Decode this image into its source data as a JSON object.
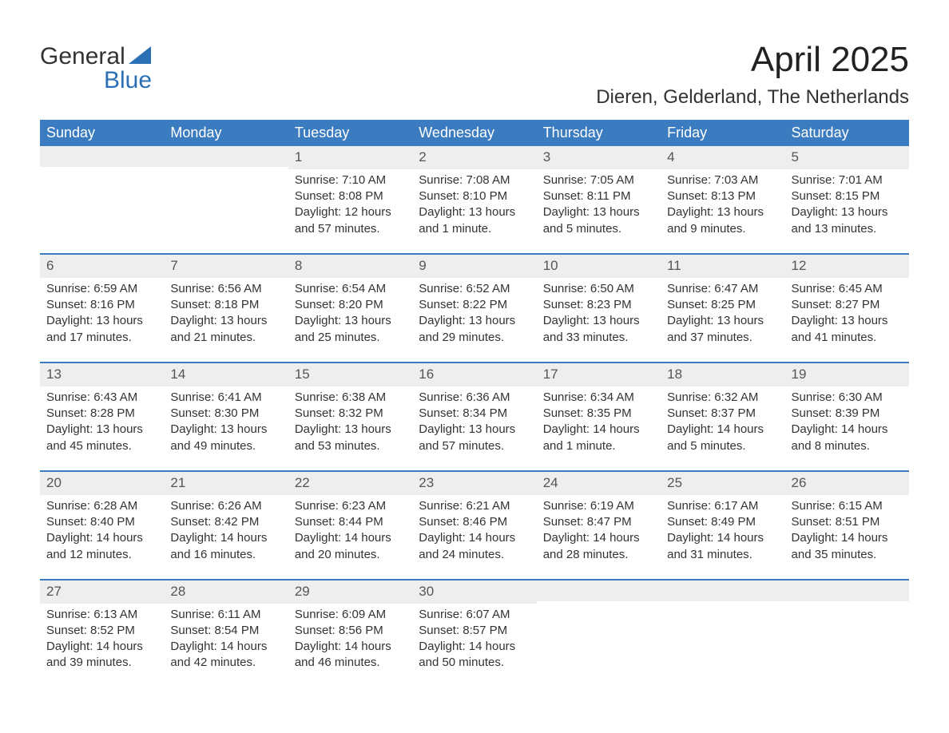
{
  "logo": {
    "line1": "General",
    "line2": "Blue"
  },
  "title": "April 2025",
  "subtitle": "Dieren, Gelderland, The Netherlands",
  "colors": {
    "header_bg": "#3b7bbf",
    "header_text": "#ffffff",
    "week_border": "#3b7bbf",
    "daynum_bg": "#eeeeee",
    "text": "#333333",
    "logo_blue": "#2b6fb5",
    "background": "#ffffff"
  },
  "typography": {
    "title_fontsize": 44,
    "subtitle_fontsize": 24,
    "dayhead_fontsize": 18,
    "daynum_fontsize": 17,
    "body_fontsize": 15,
    "logo_fontsize": 30
  },
  "day_labels": [
    "Sunday",
    "Monday",
    "Tuesday",
    "Wednesday",
    "Thursday",
    "Friday",
    "Saturday"
  ],
  "weeks": [
    [
      {
        "num": "",
        "sunrise": "",
        "sunset": "",
        "daylight": ""
      },
      {
        "num": "",
        "sunrise": "",
        "sunset": "",
        "daylight": ""
      },
      {
        "num": "1",
        "sunrise": "Sunrise: 7:10 AM",
        "sunset": "Sunset: 8:08 PM",
        "daylight": "Daylight: 12 hours and 57 minutes."
      },
      {
        "num": "2",
        "sunrise": "Sunrise: 7:08 AM",
        "sunset": "Sunset: 8:10 PM",
        "daylight": "Daylight: 13 hours and 1 minute."
      },
      {
        "num": "3",
        "sunrise": "Sunrise: 7:05 AM",
        "sunset": "Sunset: 8:11 PM",
        "daylight": "Daylight: 13 hours and 5 minutes."
      },
      {
        "num": "4",
        "sunrise": "Sunrise: 7:03 AM",
        "sunset": "Sunset: 8:13 PM",
        "daylight": "Daylight: 13 hours and 9 minutes."
      },
      {
        "num": "5",
        "sunrise": "Sunrise: 7:01 AM",
        "sunset": "Sunset: 8:15 PM",
        "daylight": "Daylight: 13 hours and 13 minutes."
      }
    ],
    [
      {
        "num": "6",
        "sunrise": "Sunrise: 6:59 AM",
        "sunset": "Sunset: 8:16 PM",
        "daylight": "Daylight: 13 hours and 17 minutes."
      },
      {
        "num": "7",
        "sunrise": "Sunrise: 6:56 AM",
        "sunset": "Sunset: 8:18 PM",
        "daylight": "Daylight: 13 hours and 21 minutes."
      },
      {
        "num": "8",
        "sunrise": "Sunrise: 6:54 AM",
        "sunset": "Sunset: 8:20 PM",
        "daylight": "Daylight: 13 hours and 25 minutes."
      },
      {
        "num": "9",
        "sunrise": "Sunrise: 6:52 AM",
        "sunset": "Sunset: 8:22 PM",
        "daylight": "Daylight: 13 hours and 29 minutes."
      },
      {
        "num": "10",
        "sunrise": "Sunrise: 6:50 AM",
        "sunset": "Sunset: 8:23 PM",
        "daylight": "Daylight: 13 hours and 33 minutes."
      },
      {
        "num": "11",
        "sunrise": "Sunrise: 6:47 AM",
        "sunset": "Sunset: 8:25 PM",
        "daylight": "Daylight: 13 hours and 37 minutes."
      },
      {
        "num": "12",
        "sunrise": "Sunrise: 6:45 AM",
        "sunset": "Sunset: 8:27 PM",
        "daylight": "Daylight: 13 hours and 41 minutes."
      }
    ],
    [
      {
        "num": "13",
        "sunrise": "Sunrise: 6:43 AM",
        "sunset": "Sunset: 8:28 PM",
        "daylight": "Daylight: 13 hours and 45 minutes."
      },
      {
        "num": "14",
        "sunrise": "Sunrise: 6:41 AM",
        "sunset": "Sunset: 8:30 PM",
        "daylight": "Daylight: 13 hours and 49 minutes."
      },
      {
        "num": "15",
        "sunrise": "Sunrise: 6:38 AM",
        "sunset": "Sunset: 8:32 PM",
        "daylight": "Daylight: 13 hours and 53 minutes."
      },
      {
        "num": "16",
        "sunrise": "Sunrise: 6:36 AM",
        "sunset": "Sunset: 8:34 PM",
        "daylight": "Daylight: 13 hours and 57 minutes."
      },
      {
        "num": "17",
        "sunrise": "Sunrise: 6:34 AM",
        "sunset": "Sunset: 8:35 PM",
        "daylight": "Daylight: 14 hours and 1 minute."
      },
      {
        "num": "18",
        "sunrise": "Sunrise: 6:32 AM",
        "sunset": "Sunset: 8:37 PM",
        "daylight": "Daylight: 14 hours and 5 minutes."
      },
      {
        "num": "19",
        "sunrise": "Sunrise: 6:30 AM",
        "sunset": "Sunset: 8:39 PM",
        "daylight": "Daylight: 14 hours and 8 minutes."
      }
    ],
    [
      {
        "num": "20",
        "sunrise": "Sunrise: 6:28 AM",
        "sunset": "Sunset: 8:40 PM",
        "daylight": "Daylight: 14 hours and 12 minutes."
      },
      {
        "num": "21",
        "sunrise": "Sunrise: 6:26 AM",
        "sunset": "Sunset: 8:42 PM",
        "daylight": "Daylight: 14 hours and 16 minutes."
      },
      {
        "num": "22",
        "sunrise": "Sunrise: 6:23 AM",
        "sunset": "Sunset: 8:44 PM",
        "daylight": "Daylight: 14 hours and 20 minutes."
      },
      {
        "num": "23",
        "sunrise": "Sunrise: 6:21 AM",
        "sunset": "Sunset: 8:46 PM",
        "daylight": "Daylight: 14 hours and 24 minutes."
      },
      {
        "num": "24",
        "sunrise": "Sunrise: 6:19 AM",
        "sunset": "Sunset: 8:47 PM",
        "daylight": "Daylight: 14 hours and 28 minutes."
      },
      {
        "num": "25",
        "sunrise": "Sunrise: 6:17 AM",
        "sunset": "Sunset: 8:49 PM",
        "daylight": "Daylight: 14 hours and 31 minutes."
      },
      {
        "num": "26",
        "sunrise": "Sunrise: 6:15 AM",
        "sunset": "Sunset: 8:51 PM",
        "daylight": "Daylight: 14 hours and 35 minutes."
      }
    ],
    [
      {
        "num": "27",
        "sunrise": "Sunrise: 6:13 AM",
        "sunset": "Sunset: 8:52 PM",
        "daylight": "Daylight: 14 hours and 39 minutes."
      },
      {
        "num": "28",
        "sunrise": "Sunrise: 6:11 AM",
        "sunset": "Sunset: 8:54 PM",
        "daylight": "Daylight: 14 hours and 42 minutes."
      },
      {
        "num": "29",
        "sunrise": "Sunrise: 6:09 AM",
        "sunset": "Sunset: 8:56 PM",
        "daylight": "Daylight: 14 hours and 46 minutes."
      },
      {
        "num": "30",
        "sunrise": "Sunrise: 6:07 AM",
        "sunset": "Sunset: 8:57 PM",
        "daylight": "Daylight: 14 hours and 50 minutes."
      },
      {
        "num": "",
        "sunrise": "",
        "sunset": "",
        "daylight": ""
      },
      {
        "num": "",
        "sunrise": "",
        "sunset": "",
        "daylight": ""
      },
      {
        "num": "",
        "sunrise": "",
        "sunset": "",
        "daylight": ""
      }
    ]
  ]
}
